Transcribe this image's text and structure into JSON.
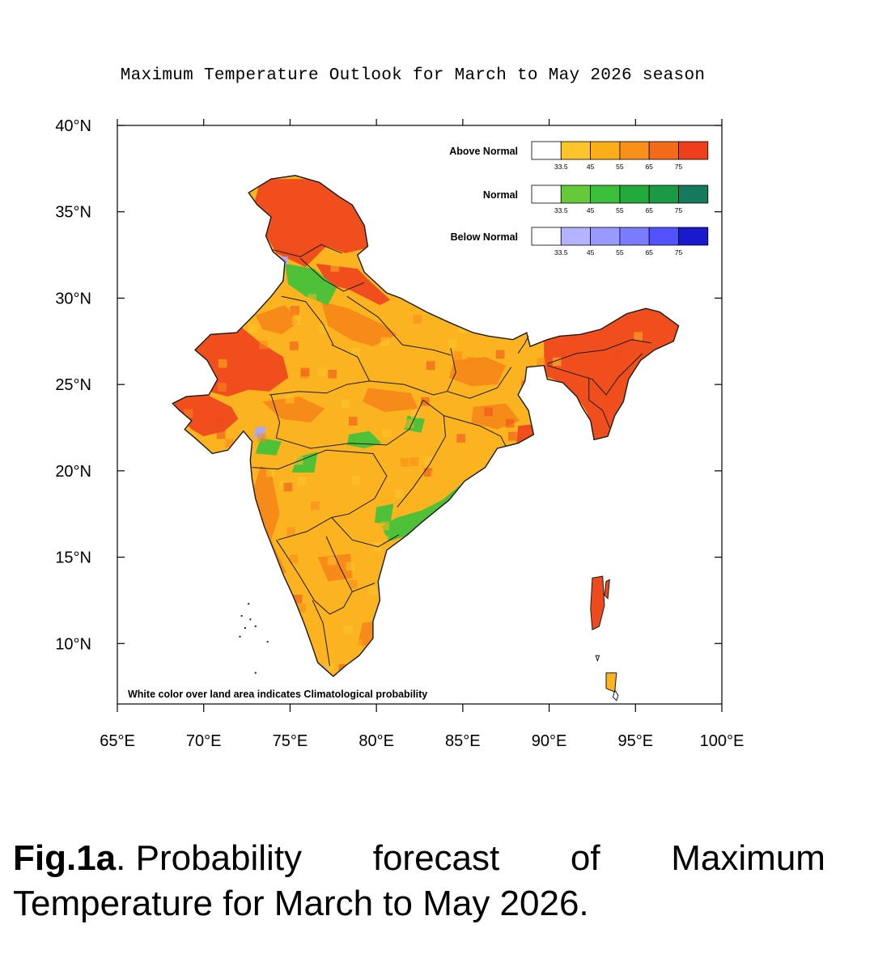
{
  "title": "Maximum Temperature Outlook for March to May 2026 season",
  "axes": {
    "lat_labels": [
      "40°N",
      "35°N",
      "30°N",
      "25°N",
      "20°N",
      "15°N",
      "10°N"
    ],
    "lat_values": [
      40,
      35,
      30,
      25,
      20,
      15,
      10
    ],
    "lon_labels": [
      "65°E",
      "70°E",
      "75°E",
      "80°E",
      "85°E",
      "90°E",
      "95°E",
      "100°E"
    ],
    "lon_values": [
      65,
      70,
      75,
      80,
      85,
      90,
      95,
      100
    ],
    "lat_range": [
      6.5,
      40
    ],
    "lon_range": [
      65,
      100
    ]
  },
  "legend": {
    "tick_labels": [
      "33.5",
      "45",
      "55",
      "65",
      "75"
    ],
    "categories": [
      {
        "name": "Above Normal",
        "colors": [
          "#ffffff",
          "#fdc52b",
          "#fbae1a",
          "#f9901a",
          "#f36b18",
          "#ee3e1c"
        ]
      },
      {
        "name": "Normal",
        "colors": [
          "#ffffff",
          "#66c93a",
          "#3cbf3a",
          "#22ab3a",
          "#1a9a44",
          "#157a5c"
        ]
      },
      {
        "name": "Below Normal",
        "colors": [
          "#ffffff",
          "#b3b3ff",
          "#9999ff",
          "#7b7bff",
          "#5252ff",
          "#1a1acc"
        ]
      }
    ]
  },
  "map_colors": {
    "base": "#fbb41f",
    "red": "#ef4a1e",
    "orange": "#f7891a",
    "green": "#46c23a",
    "lavender": "#a8a8ff",
    "border": "#1a1a1a"
  },
  "footnote": "White color over land area indicates Climatological probability",
  "caption": {
    "bold": "Fig.1a",
    "words": [
      ". Probability",
      "forecast",
      "of",
      "Maximum"
    ],
    "line2": "Temperature for March to May 2026."
  }
}
